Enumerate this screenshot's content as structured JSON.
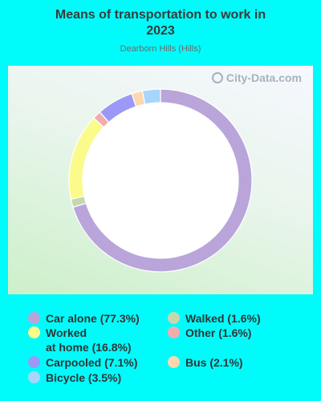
{
  "title": "Means of transportation to work in\n2023",
  "subtitle": "Dearborn Hills (Hills)",
  "watermark": "City-Data.com",
  "chart_data": {
    "type": "pie",
    "variant": "donut",
    "start": "top",
    "direction": "clockwise",
    "slices": [
      {
        "label": "Car alone",
        "value": 77.3,
        "color": "#b9a5da"
      },
      {
        "label": "Walked",
        "value": 1.6,
        "color": "#c6d7ae"
      },
      {
        "label": "Worked at home",
        "value": 16.8,
        "color": "#fbfb8b"
      },
      {
        "label": "Other",
        "value": 1.6,
        "color": "#f1adae"
      },
      {
        "label": "Carpooled",
        "value": 7.1,
        "color": "#9b99f5"
      },
      {
        "label": "Bus",
        "value": 2.1,
        "color": "#fbd8af"
      },
      {
        "label": "Bicycle",
        "value": 3.5,
        "color": "#a8d6fb"
      }
    ]
  },
  "legend": [
    {
      "text": "Car alone (77.3%)",
      "color": "#b9a5da"
    },
    {
      "text": "Walked (1.6%)",
      "color": "#c6d7ae"
    },
    {
      "text": "Worked\nat home (16.8%)",
      "color": "#fbfb8b"
    },
    {
      "text": "Other (1.6%)",
      "color": "#f1adae"
    },
    {
      "text": "Carpooled (7.1%)",
      "color": "#9b99f5"
    },
    {
      "text": "Bus (2.1%)",
      "color": "#fbd8af"
    },
    {
      "text": "Bicycle (3.5%)",
      "color": "#a8d6fb"
    }
  ]
}
